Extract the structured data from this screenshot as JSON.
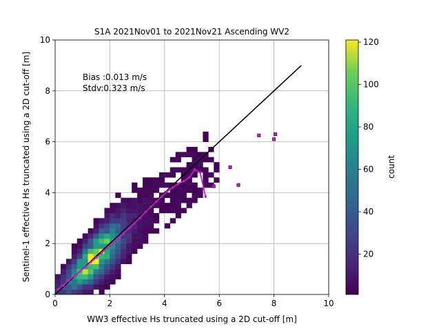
{
  "chart_data": {
    "type": "heatmap",
    "title": "S1A 2021Nov01 to 2021Nov21 Ascending WV2",
    "xlabel": "WW3 effective Hs truncated using a 2D cut-off [m]",
    "ylabel": "Sentinel-1 effective Hs truncated using a 2D cut-off [m]",
    "xlim": [
      0,
      10
    ],
    "ylim": [
      0,
      10
    ],
    "xticks": [
      "0",
      "2",
      "4",
      "6",
      "8",
      "10"
    ],
    "yticks": [
      "0",
      "2",
      "4",
      "6",
      "8",
      "10"
    ],
    "grid": true,
    "annotations": [
      "Bias :0.013 m/s",
      "Stdv:0.323 m/s"
    ],
    "one_to_one_line": {
      "x": [
        0,
        9
      ],
      "y": [
        0,
        9
      ],
      "color": "#000000"
    },
    "binned_mean_line": {
      "color": "#c41ec4",
      "x": [
        0.1,
        0.3,
        0.5,
        0.7,
        0.9,
        1.1,
        1.3,
        1.5,
        1.7,
        1.9,
        2.1,
        2.3,
        2.5,
        2.7,
        2.9,
        3.1,
        3.3,
        3.5,
        3.7,
        3.9,
        4.1,
        4.3,
        4.5,
        4.7,
        4.9,
        5.1,
        5.3,
        5.5
      ],
      "y": [
        0.2,
        0.35,
        0.55,
        0.72,
        0.9,
        1.08,
        1.27,
        1.45,
        1.63,
        1.82,
        2.0,
        2.2,
        2.4,
        2.6,
        2.8,
        3.0,
        3.25,
        3.45,
        3.65,
        3.85,
        4.05,
        4.2,
        4.35,
        4.45,
        4.6,
        4.9,
        4.8,
        3.85
      ]
    },
    "outlier_points": {
      "color": "#c41ec4",
      "x": [
        5.8,
        6.4,
        6.7,
        7.45,
        8.0,
        8.05
      ],
      "y": [
        4.25,
        5.0,
        4.3,
        6.25,
        6.1,
        6.3
      ]
    },
    "density": {
      "bin_size": 0.2,
      "center_slope": 0.95,
      "max_count": 120
    },
    "colorbar": {
      "label": "count",
      "range": [
        1,
        121
      ],
      "ticks": [
        "20",
        "40",
        "60",
        "80",
        "100",
        "120"
      ]
    }
  }
}
